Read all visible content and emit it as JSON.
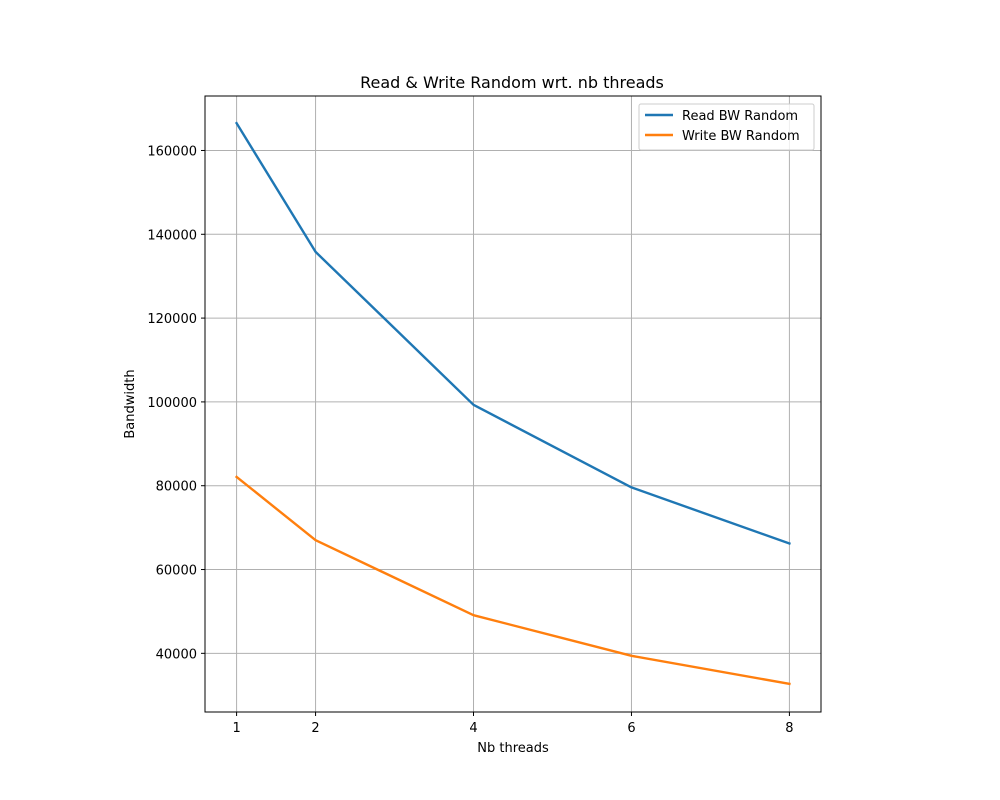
{
  "chart_data": {
    "type": "line",
    "title": "Read & Write Random wrt. nb threads",
    "xlabel": "Nb threads",
    "ylabel": "Bandwidth",
    "x": [
      1,
      2,
      4,
      6,
      8
    ],
    "xticks": [
      "1",
      "2",
      "4",
      "6",
      "8"
    ],
    "yticks": [
      40000,
      60000,
      80000,
      100000,
      120000,
      140000,
      160000
    ],
    "ylim": [
      26000,
      173000
    ],
    "grid": true,
    "legend_position": "top-right",
    "series": [
      {
        "name": "Read BW Random",
        "color": "#1f77b4",
        "values": [
          166500,
          135800,
          99300,
          79600,
          66200
        ]
      },
      {
        "name": "Write BW Random",
        "color": "#ff7f0e",
        "values": [
          82100,
          67000,
          49100,
          39400,
          32700
        ]
      }
    ]
  }
}
